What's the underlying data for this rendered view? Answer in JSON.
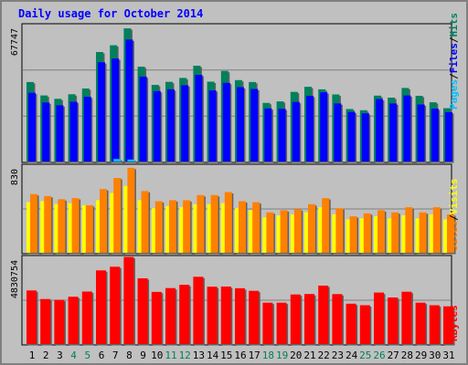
{
  "title": "Daily usage for October 2014",
  "colors": {
    "background": "#c0c0c0",
    "border": "#808080",
    "title": "#0000ff",
    "hits": "#00805c",
    "files": "#0000ff",
    "pages": "#00c0ff",
    "visits": "#ffff00",
    "sites": "#ff8000",
    "kbytes": "#ff0000",
    "weekend_label": "#00805c",
    "weekday_label": "#000000"
  },
  "chart_data": [
    {
      "type": "bar",
      "panel": "hits_files_pages",
      "ymax_label": "67747",
      "ylim": [
        0,
        67747
      ],
      "right_labels": [
        "Pages",
        "/",
        "Files",
        "/",
        "Hits"
      ],
      "categories": [
        "1",
        "2",
        "3",
        "4",
        "5",
        "6",
        "7",
        "8",
        "9",
        "10",
        "11",
        "12",
        "13",
        "14",
        "15",
        "16",
        "17",
        "18",
        "19",
        "20",
        "21",
        "22",
        "23",
        "24",
        "25",
        "26",
        "27",
        "28",
        "29",
        "30",
        "31"
      ],
      "weekend_days": [
        4,
        5,
        11,
        12,
        18,
        19,
        25,
        26
      ],
      "series": [
        {
          "name": "Hits",
          "values": [
            40400,
            33600,
            31900,
            34200,
            37100,
            55700,
            59100,
            67700,
            48200,
            39000,
            40500,
            42500,
            48700,
            40600,
            46100,
            41400,
            40400,
            29800,
            30600,
            35400,
            38000,
            36700,
            34100,
            26700,
            26100,
            33500,
            32500,
            37400,
            33400,
            30100,
            27100
          ]
        },
        {
          "name": "Files",
          "values": [
            35000,
            30000,
            28600,
            30400,
            32900,
            50500,
            52400,
            62000,
            43200,
            35800,
            36700,
            38800,
            44100,
            36200,
            40000,
            37800,
            36900,
            27000,
            26800,
            30300,
            33400,
            35200,
            29500,
            25200,
            24500,
            31800,
            29500,
            33600,
            29000,
            26900,
            25100
          ]
        },
        {
          "name": "Pages",
          "values": [
            0,
            0,
            0,
            0,
            0,
            0,
            1300,
            1000,
            0,
            0,
            0,
            0,
            0,
            0,
            0,
            0,
            0,
            0,
            0,
            0,
            0,
            0,
            0,
            0,
            0,
            0,
            0,
            0,
            0,
            0,
            0
          ]
        }
      ]
    },
    {
      "type": "bar",
      "panel": "visits_sites",
      "ymax_label": "830",
      "ylim": [
        0,
        830
      ],
      "right_labels": [
        "Sites",
        "/",
        "Visits"
      ],
      "categories": [
        "1",
        "2",
        "3",
        "4",
        "5",
        "6",
        "7",
        "8",
        "9",
        "10",
        "11",
        "12",
        "13",
        "14",
        "15",
        "16",
        "17",
        "18",
        "19",
        "20",
        "21",
        "22",
        "23",
        "24",
        "25",
        "26",
        "27",
        "28",
        "29",
        "30",
        "31"
      ],
      "series": [
        {
          "name": "Sites",
          "values": [
            580,
            560,
            530,
            540,
            470,
            630,
            740,
            840,
            610,
            510,
            520,
            520,
            570,
            570,
            600,
            510,
            500,
            400,
            420,
            430,
            480,
            540,
            440,
            360,
            390,
            420,
            400,
            450,
            400,
            450,
            380
          ]
        },
        {
          "name": "Visits",
          "values": [
            500,
            510,
            480,
            490,
            470,
            520,
            590,
            660,
            520,
            440,
            460,
            450,
            480,
            480,
            490,
            440,
            420,
            350,
            370,
            380,
            400,
            450,
            380,
            330,
            340,
            360,
            340,
            370,
            340,
            380,
            330
          ]
        }
      ]
    },
    {
      "type": "bar",
      "panel": "kbytes",
      "ymax_label": "4830754",
      "ylim": [
        0,
        4830754
      ],
      "right_labels": [
        "KBytes"
      ],
      "categories": [
        "1",
        "2",
        "3",
        "4",
        "5",
        "6",
        "7",
        "8",
        "9",
        "10",
        "11",
        "12",
        "13",
        "14",
        "15",
        "16",
        "17",
        "18",
        "19",
        "20",
        "21",
        "22",
        "23",
        "24",
        "25",
        "26",
        "27",
        "28",
        "29",
        "30",
        "31"
      ],
      "series": [
        {
          "name": "KBytes",
          "values": [
            3080000,
            2590000,
            2540000,
            2720000,
            3020000,
            4240000,
            4450000,
            5010000,
            3780000,
            3000000,
            3220000,
            3410000,
            3870000,
            3300000,
            3310000,
            3210000,
            3060000,
            2380000,
            2380000,
            2850000,
            2880000,
            3360000,
            2870000,
            2320000,
            2230000,
            2960000,
            2680000,
            3010000,
            2380000,
            2230000,
            2170000
          ]
        }
      ]
    }
  ]
}
